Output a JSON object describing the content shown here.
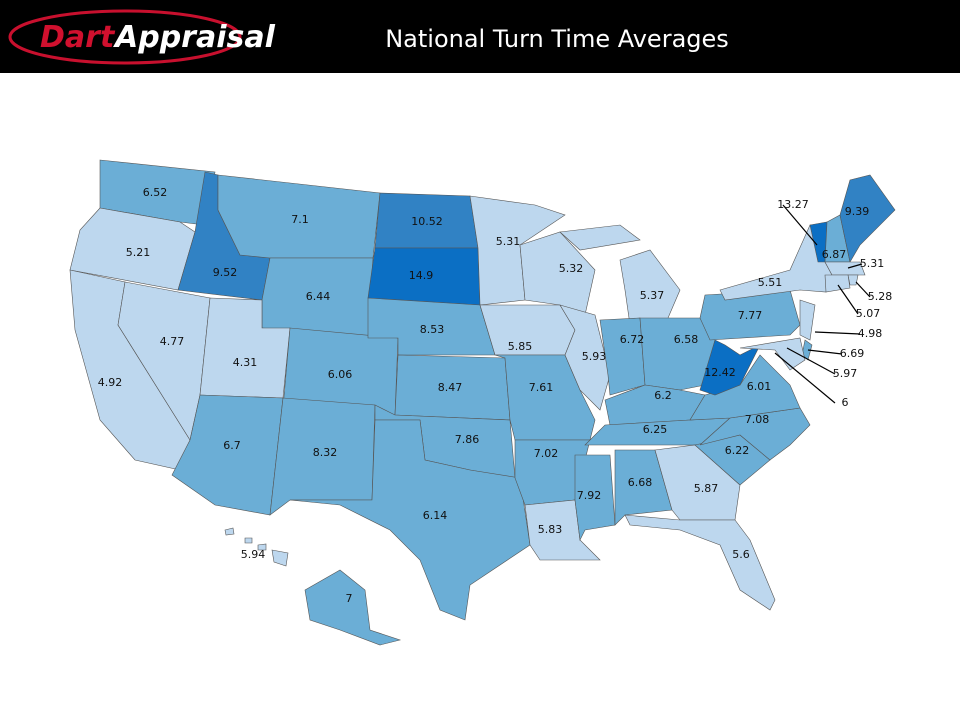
{
  "header": {
    "logo": [
      "Dart",
      "Appraisal"
    ],
    "title": "National Turn Time Averages"
  },
  "map": {
    "values": [
      6.52,
      5.21,
      4.92,
      4.77,
      9.52,
      7.1,
      6.44,
      4.31,
      6.06,
      6.7,
      8.32,
      10.52,
      14.9,
      8.53,
      8.47,
      7.86,
      6.14,
      5.31,
      5.85,
      7.61,
      7.02,
      5.83,
      5.32,
      5.37,
      5.93,
      6.72,
      6.58,
      6.2,
      6.25,
      7.92,
      6.68,
      5.87,
      5.6,
      6.22,
      7.08,
      6.01,
      12.42,
      7.77,
      5.51,
      13.27,
      6.87,
      9.39,
      5.31,
      5.28,
      5.07,
      4.98,
      6.69,
      5.97,
      6,
      7,
      5.94
    ]
  }
}
